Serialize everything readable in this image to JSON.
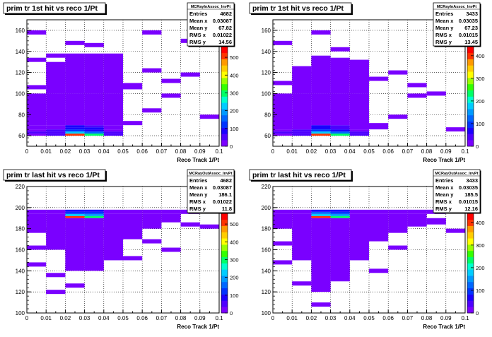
{
  "chart_data": [
    {
      "type": "heatmap",
      "title": "prim tr 1st hit vs reco 1/Pt",
      "xlabel": "Reco Track 1/Pt",
      "ylabel": "",
      "xlim": [
        0,
        0.1
      ],
      "ylim": [
        50,
        170
      ],
      "xticks": [
        "0",
        "0.01",
        "0.02",
        "0.03",
        "0.04",
        "0.05",
        "0.06",
        "0.07",
        "0.08",
        "0.09",
        "0.1"
      ],
      "yticks": [
        "60",
        "80",
        "100",
        "120",
        "140",
        "160"
      ],
      "ytick_values": [
        60,
        80,
        100,
        120,
        140,
        160
      ],
      "colorbar_ticks": [
        "0",
        "100",
        "200",
        "300",
        "400",
        "500"
      ],
      "colorbar_max": 560,
      "grid": true,
      "stats": {
        "name": "MCRayInAssoc_InvPt",
        "rows": [
          [
            "Entries",
            "4682"
          ],
          [
            "Mean x",
            "0.03087"
          ],
          [
            "Mean y",
            "67.82"
          ],
          [
            "RMS x",
            "0.01022"
          ],
          [
            "RMS y",
            "14.56"
          ]
        ]
      },
      "cells": [
        [
          0.0,
          0.01,
          60,
          62,
          30
        ],
        [
          0.01,
          0.02,
          60,
          62,
          40
        ],
        [
          0.02,
          0.03,
          60,
          62,
          520
        ],
        [
          0.03,
          0.04,
          60,
          62,
          300
        ],
        [
          0.04,
          0.05,
          60,
          62,
          50
        ],
        [
          0.0,
          0.01,
          62,
          64,
          40
        ],
        [
          0.01,
          0.02,
          62,
          64,
          45
        ],
        [
          0.02,
          0.03,
          62,
          64,
          220
        ],
        [
          0.03,
          0.04,
          62,
          64,
          160
        ],
        [
          0.04,
          0.05,
          62,
          64,
          40
        ],
        [
          0.0,
          0.01,
          64,
          66,
          30
        ],
        [
          0.01,
          0.02,
          64,
          66,
          40
        ],
        [
          0.02,
          0.03,
          64,
          66,
          130
        ],
        [
          0.03,
          0.04,
          64,
          66,
          100
        ],
        [
          0.04,
          0.05,
          64,
          66,
          30
        ],
        [
          0.02,
          0.03,
          66,
          68,
          90
        ],
        [
          0.03,
          0.04,
          66,
          68,
          70
        ],
        [
          0.02,
          0.03,
          68,
          70,
          70
        ],
        [
          0.03,
          0.04,
          68,
          70,
          60
        ],
        [
          0.0,
          0.01,
          66,
          70,
          20
        ],
        [
          0.01,
          0.02,
          66,
          70,
          25
        ],
        [
          0.04,
          0.05,
          66,
          70,
          20
        ],
        [
          0.0,
          0.01,
          70,
          100,
          12
        ],
        [
          0.01,
          0.02,
          70,
          100,
          12
        ],
        [
          0.02,
          0.03,
          70,
          100,
          20
        ],
        [
          0.03,
          0.04,
          70,
          100,
          20
        ],
        [
          0.04,
          0.05,
          70,
          100,
          12
        ],
        [
          0.05,
          0.06,
          70,
          74,
          12
        ],
        [
          0.06,
          0.07,
          82,
          86,
          12
        ],
        [
          0.07,
          0.08,
          96,
          100,
          12
        ],
        [
          0.09,
          0.1,
          76,
          80,
          12
        ],
        [
          0.0,
          0.01,
          104,
          108,
          12
        ],
        [
          0.01,
          0.02,
          100,
          130,
          12
        ],
        [
          0.02,
          0.03,
          100,
          138,
          15
        ],
        [
          0.03,
          0.04,
          100,
          138,
          15
        ],
        [
          0.04,
          0.05,
          100,
          138,
          12
        ],
        [
          0.05,
          0.06,
          104,
          110,
          12
        ],
        [
          0.06,
          0.07,
          120,
          124,
          12
        ],
        [
          0.07,
          0.08,
          110,
          114,
          12
        ],
        [
          0.08,
          0.09,
          116,
          120,
          12
        ],
        [
          0.0,
          0.01,
          130,
          134,
          12
        ],
        [
          0.01,
          0.02,
          134,
          138,
          12
        ],
        [
          0.02,
          0.03,
          146,
          150,
          12
        ],
        [
          0.03,
          0.04,
          144,
          148,
          12
        ],
        [
          0.0,
          0.01,
          156,
          160,
          12
        ],
        [
          0.06,
          0.07,
          156,
          160,
          12
        ],
        [
          0.08,
          0.09,
          148,
          152,
          12
        ]
      ]
    },
    {
      "type": "heatmap",
      "title": "prim tr 1st hit vs reco 1/Pt",
      "xlabel": "Reco Track 1/Pt",
      "ylabel": "",
      "xlim": [
        0,
        0.1
      ],
      "ylim": [
        50,
        170
      ],
      "xticks": [
        "0",
        "0.01",
        "0.02",
        "0.03",
        "0.04",
        "0.05",
        "0.06",
        "0.07",
        "0.08",
        "0.09",
        "0.1"
      ],
      "yticks": [
        "60",
        "80",
        "100",
        "120",
        "140",
        "160"
      ],
      "ytick_values": [
        60,
        80,
        100,
        120,
        140,
        160
      ],
      "colorbar_ticks": [
        "0",
        "100",
        "200",
        "300",
        "400"
      ],
      "colorbar_max": 440,
      "grid": true,
      "stats": {
        "name": "MCRayInAssoc_InvPt",
        "rows": [
          [
            "Entries",
            "3433"
          ],
          [
            "Mean x",
            "0.03035"
          ],
          [
            "Mean y",
            "67.23"
          ],
          [
            "RMS x",
            "0.01015"
          ],
          [
            "RMS y",
            "13.45"
          ]
        ]
      },
      "cells": [
        [
          0.0,
          0.01,
          60,
          62,
          25
        ],
        [
          0.01,
          0.02,
          60,
          62,
          35
        ],
        [
          0.02,
          0.03,
          60,
          62,
          410
        ],
        [
          0.03,
          0.04,
          60,
          62,
          240
        ],
        [
          0.04,
          0.05,
          60,
          62,
          40
        ],
        [
          0.0,
          0.01,
          62,
          64,
          30
        ],
        [
          0.01,
          0.02,
          62,
          64,
          35
        ],
        [
          0.02,
          0.03,
          62,
          64,
          170
        ],
        [
          0.03,
          0.04,
          62,
          64,
          130
        ],
        [
          0.04,
          0.05,
          62,
          64,
          35
        ],
        [
          0.0,
          0.01,
          64,
          66,
          20
        ],
        [
          0.01,
          0.02,
          64,
          66,
          30
        ],
        [
          0.02,
          0.03,
          64,
          66,
          100
        ],
        [
          0.03,
          0.04,
          64,
          66,
          80
        ],
        [
          0.04,
          0.05,
          64,
          66,
          25
        ],
        [
          0.02,
          0.03,
          66,
          70,
          60
        ],
        [
          0.03,
          0.04,
          66,
          70,
          50
        ],
        [
          0.0,
          0.01,
          66,
          100,
          10
        ],
        [
          0.01,
          0.02,
          66,
          100,
          12
        ],
        [
          0.02,
          0.03,
          70,
          100,
          16
        ],
        [
          0.03,
          0.04,
          70,
          100,
          16
        ],
        [
          0.04,
          0.05,
          66,
          100,
          10
        ],
        [
          0.05,
          0.06,
          66,
          72,
          10
        ],
        [
          0.06,
          0.07,
          76,
          80,
          10
        ],
        [
          0.07,
          0.08,
          96,
          100,
          10
        ],
        [
          0.09,
          0.1,
          64,
          68,
          10
        ],
        [
          0.0,
          0.01,
          108,
          112,
          10
        ],
        [
          0.01,
          0.02,
          100,
          126,
          10
        ],
        [
          0.02,
          0.03,
          100,
          136,
          12
        ],
        [
          0.03,
          0.04,
          100,
          134,
          12
        ],
        [
          0.04,
          0.05,
          100,
          132,
          10
        ],
        [
          0.05,
          0.06,
          112,
          116,
          10
        ],
        [
          0.06,
          0.07,
          118,
          122,
          10
        ],
        [
          0.07,
          0.08,
          106,
          110,
          10
        ],
        [
          0.08,
          0.09,
          98,
          102,
          10
        ],
        [
          0.0,
          0.01,
          146,
          150,
          10
        ],
        [
          0.02,
          0.03,
          156,
          160,
          10
        ],
        [
          0.03,
          0.04,
          140,
          144,
          10
        ],
        [
          0.04,
          0.05,
          128,
          132,
          10
        ]
      ]
    },
    {
      "type": "heatmap",
      "title": "prim tr last hit vs reco 1/Pt",
      "xlabel": "Reco Track 1/Pt",
      "ylabel": "",
      "xlim": [
        0,
        0.1
      ],
      "ylim": [
        100,
        220
      ],
      "xticks": [
        "0",
        "0.01",
        "0.02",
        "0.03",
        "0.04",
        "0.05",
        "0.06",
        "0.07",
        "0.08",
        "0.09",
        "0.1"
      ],
      "yticks": [
        "100",
        "120",
        "140",
        "160",
        "180",
        "200",
        "220"
      ],
      "ytick_values": [
        100,
        120,
        140,
        160,
        180,
        200,
        220
      ],
      "colorbar_ticks": [
        "0",
        "100",
        "200",
        "300",
        "400",
        "500"
      ],
      "colorbar_max": 560,
      "grid": true,
      "stats": {
        "name": "MCRayOutAssoc_InvPt",
        "rows": [
          [
            "Entries",
            "4682"
          ],
          [
            "Mean x",
            "0.03087"
          ],
          [
            "Mean y",
            "186.1"
          ],
          [
            "RMS x",
            "0.01022"
          ],
          [
            "RMS y",
            "11.8"
          ]
        ]
      },
      "cells": [
        [
          0.02,
          0.03,
          190,
          192,
          520
        ],
        [
          0.03,
          0.04,
          190,
          192,
          300
        ],
        [
          0.02,
          0.03,
          192,
          194,
          230
        ],
        [
          0.03,
          0.04,
          192,
          194,
          180
        ],
        [
          0.02,
          0.03,
          194,
          196,
          130
        ],
        [
          0.03,
          0.04,
          194,
          196,
          110
        ],
        [
          0.02,
          0.03,
          196,
          198,
          80
        ],
        [
          0.03,
          0.04,
          196,
          198,
          70
        ],
        [
          0.0,
          0.01,
          194,
          198,
          15
        ],
        [
          0.01,
          0.02,
          194,
          198,
          20
        ],
        [
          0.04,
          0.05,
          194,
          198,
          20
        ],
        [
          0.05,
          0.06,
          194,
          198,
          15
        ],
        [
          0.06,
          0.07,
          194,
          198,
          15
        ],
        [
          0.07,
          0.08,
          194,
          198,
          15
        ],
        [
          0.08,
          0.09,
          194,
          198,
          15
        ],
        [
          0.0,
          0.01,
          176,
          194,
          12
        ],
        [
          0.01,
          0.02,
          160,
          194,
          12
        ],
        [
          0.02,
          0.03,
          140,
          190,
          15
        ],
        [
          0.03,
          0.04,
          140,
          190,
          15
        ],
        [
          0.04,
          0.05,
          150,
          194,
          12
        ],
        [
          0.05,
          0.06,
          170,
          194,
          12
        ],
        [
          0.06,
          0.07,
          180,
          194,
          12
        ],
        [
          0.07,
          0.08,
          186,
          194,
          12
        ],
        [
          0.08,
          0.09,
          182,
          186,
          12
        ],
        [
          0.0,
          0.01,
          144,
          148,
          12
        ],
        [
          0.0,
          0.01,
          160,
          164,
          12
        ],
        [
          0.01,
          0.02,
          134,
          138,
          12
        ],
        [
          0.01,
          0.02,
          118,
          122,
          12
        ],
        [
          0.05,
          0.06,
          150,
          154,
          12
        ],
        [
          0.06,
          0.07,
          166,
          170,
          12
        ],
        [
          0.07,
          0.08,
          158,
          162,
          12
        ],
        [
          0.09,
          0.1,
          180,
          184,
          12
        ],
        [
          0.02,
          0.03,
          124,
          128,
          12
        ]
      ]
    },
    {
      "type": "heatmap",
      "title": "prim tr last hit vs reco 1/Pt",
      "xlabel": "Reco Track 1/Pt",
      "ylabel": "",
      "xlim": [
        0,
        0.1
      ],
      "ylim": [
        100,
        220
      ],
      "xticks": [
        "0",
        "0.01",
        "0.02",
        "0.03",
        "0.04",
        "0.05",
        "0.06",
        "0.07",
        "0.08",
        "0.09",
        "0.1"
      ],
      "yticks": [
        "100",
        "120",
        "140",
        "160",
        "180",
        "200",
        "220"
      ],
      "ytick_values": [
        100,
        120,
        140,
        160,
        180,
        200,
        220
      ],
      "colorbar_ticks": [
        "0",
        "100",
        "200",
        "300",
        "400"
      ],
      "colorbar_max": 440,
      "grid": true,
      "stats": {
        "name": "MCRayOutAssoc_InvPt",
        "rows": [
          [
            "Entries",
            "3433"
          ],
          [
            "Mean x",
            "0.03035"
          ],
          [
            "Mean y",
            "185.5"
          ],
          [
            "RMS x",
            "0.01015"
          ],
          [
            "RMS y",
            "12.16"
          ]
        ]
      },
      "cells": [
        [
          0.02,
          0.03,
          190,
          192,
          410
        ],
        [
          0.03,
          0.04,
          190,
          192,
          240
        ],
        [
          0.02,
          0.03,
          192,
          194,
          180
        ],
        [
          0.03,
          0.04,
          192,
          194,
          150
        ],
        [
          0.02,
          0.03,
          194,
          196,
          110
        ],
        [
          0.03,
          0.04,
          194,
          196,
          90
        ],
        [
          0.02,
          0.03,
          196,
          198,
          70
        ],
        [
          0.03,
          0.04,
          196,
          198,
          60
        ],
        [
          0.0,
          0.01,
          194,
          198,
          12
        ],
        [
          0.01,
          0.02,
          194,
          198,
          15
        ],
        [
          0.04,
          0.05,
          194,
          198,
          15
        ],
        [
          0.05,
          0.06,
          194,
          198,
          12
        ],
        [
          0.06,
          0.07,
          194,
          198,
          12
        ],
        [
          0.07,
          0.08,
          194,
          198,
          12
        ],
        [
          0.08,
          0.09,
          194,
          198,
          12
        ],
        [
          0.0,
          0.01,
          180,
          194,
          10
        ],
        [
          0.01,
          0.02,
          150,
          194,
          10
        ],
        [
          0.02,
          0.03,
          120,
          190,
          12
        ],
        [
          0.03,
          0.04,
          130,
          190,
          12
        ],
        [
          0.04,
          0.05,
          150,
          194,
          10
        ],
        [
          0.05,
          0.06,
          168,
          194,
          10
        ],
        [
          0.06,
          0.07,
          176,
          194,
          10
        ],
        [
          0.07,
          0.08,
          182,
          194,
          10
        ],
        [
          0.08,
          0.09,
          184,
          190,
          10
        ],
        [
          0.0,
          0.01,
          146,
          150,
          10
        ],
        [
          0.01,
          0.02,
          126,
          130,
          10
        ],
        [
          0.02,
          0.03,
          106,
          110,
          10
        ],
        [
          0.05,
          0.06,
          138,
          142,
          10
        ],
        [
          0.06,
          0.07,
          160,
          164,
          10
        ],
        [
          0.09,
          0.1,
          176,
          180,
          10
        ],
        [
          0.0,
          0.01,
          164,
          168,
          10
        ]
      ]
    }
  ]
}
